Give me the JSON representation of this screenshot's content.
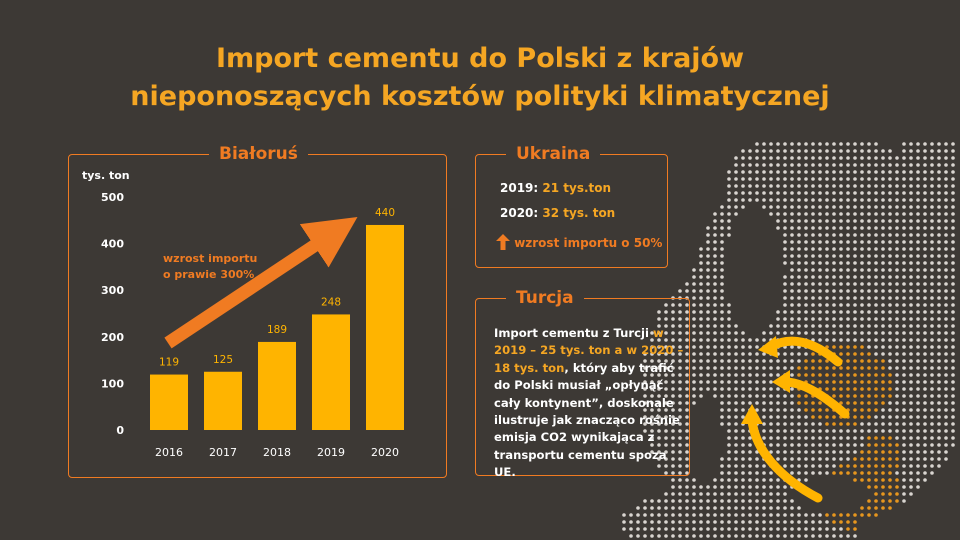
{
  "title": {
    "line1": "Import cementu do Polski z krajów",
    "line2": "nieponoszących kosztów polityki klimatycznej"
  },
  "belarus": {
    "panel_title": "Białoruś",
    "annotation_line1": "wzrost importu",
    "annotation_line2": "o prawie 300%"
  },
  "ukraine": {
    "panel_title": "Ukraina",
    "row1_label": "2019:",
    "row1_value": "21 tys.ton",
    "row2_label": "2020:",
    "row2_value": "32 tys. ton",
    "growth_text": "wzrost importu o 50%"
  },
  "turkey": {
    "panel_title": "Turcja",
    "text_part1": "Import cementu z Turcji",
    "text_highlight": "w 2019 – 25 tys. ton a w 2020 – 18 tys. ton",
    "text_part2": ", który aby trafić do Polski musiał „opłynąć cały kontynent”, doskonale ilustruje jak znacząco rośnie emisja CO2 wynikająca z transportu cementu spoza UE."
  },
  "colors": {
    "background": "#3d3935",
    "bar": "#ffb400",
    "accent_orange": "#f07b22",
    "title_yellow": "#f5a623",
    "map_dot": "#d9d5d0",
    "poland_dot": "#e6961e"
  },
  "chart_data": {
    "type": "bar",
    "title": "Białoruś",
    "ylabel": "tys. ton",
    "xlabel": "",
    "categories": [
      "2016",
      "2017",
      "2018",
      "2019",
      "2020"
    ],
    "values": [
      119,
      125,
      189,
      248,
      440
    ],
    "data_labels": [
      "119",
      "125",
      "189",
      "248",
      "440"
    ],
    "ylim": [
      0,
      500
    ],
    "yticks": [
      "0",
      "100",
      "200",
      "300",
      "400",
      "500"
    ],
    "grid": false,
    "legend": "none"
  }
}
